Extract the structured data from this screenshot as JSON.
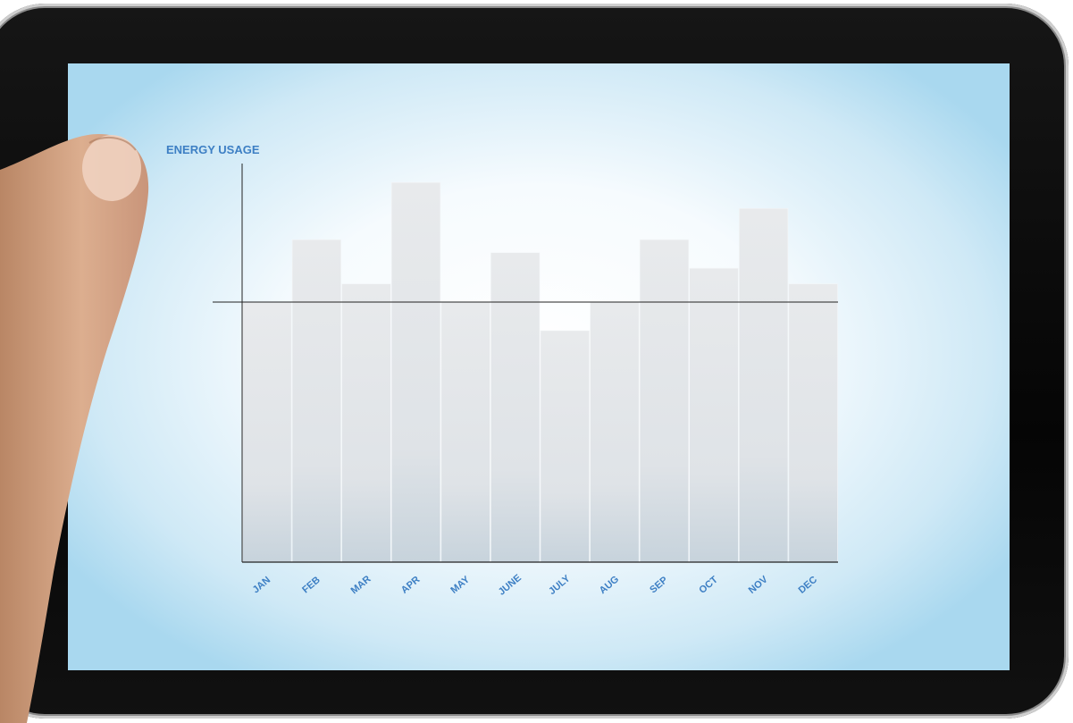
{
  "chart_data": {
    "type": "bar",
    "title": "ENERGY USAGE",
    "categories": [
      "JAN",
      "FEB",
      "MAR",
      "APR",
      "MAY",
      "JUNE",
      "JULY",
      "AUG",
      "SEP",
      "OCT",
      "NOV",
      "DEC"
    ],
    "values": [
      100,
      124,
      107,
      146,
      100,
      119,
      89,
      100,
      124,
      113,
      136,
      107
    ],
    "reference_line": 100,
    "ylim": [
      0,
      160
    ],
    "grid": false,
    "legend": "none",
    "colors": {
      "bar": "#e4e6e8",
      "axis": "#222222",
      "label": "#3d7fc4"
    }
  }
}
